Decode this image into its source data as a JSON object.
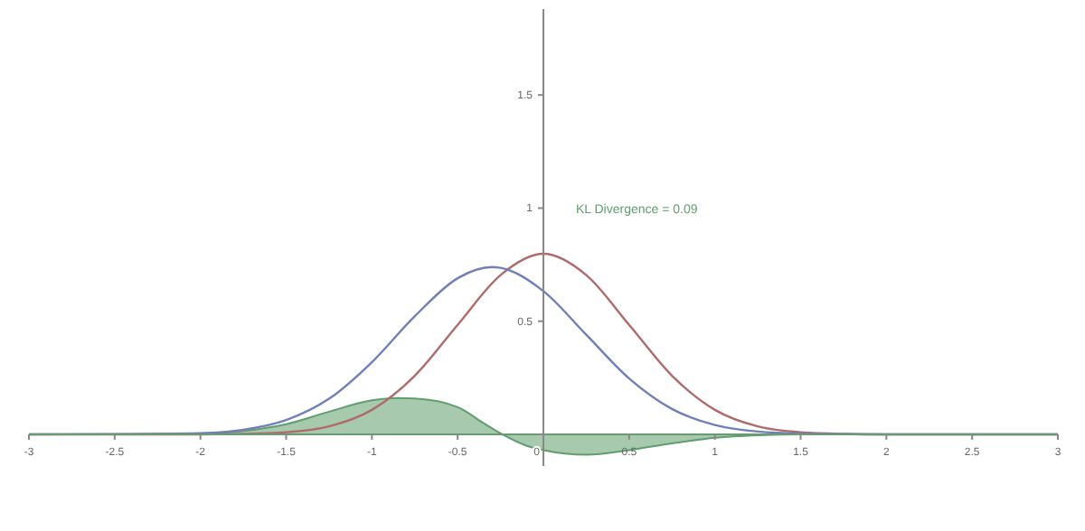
{
  "chart_data": {
    "type": "line",
    "xlim": [
      -3,
      3
    ],
    "ylim": [
      -0.14,
      1.88
    ],
    "xticks": [
      -3,
      -2.5,
      -2,
      -1.5,
      -1,
      -0.5,
      0,
      0.5,
      1,
      1.5,
      2,
      2.5,
      3
    ],
    "yticks": [
      {
        "value": 0,
        "label": null
      },
      0.5,
      1,
      1.5
    ],
    "annotations": [
      "KL Divergence = 0.09"
    ],
    "grid": false,
    "marker": "none",
    "line_style": "solid",
    "series": [
      {
        "type": "area",
        "color": "#5f9e6e",
        "x": [
          -3,
          -2.5,
          -2,
          -1.75,
          -1.5,
          -1.25,
          -1,
          -0.85,
          -0.75,
          -0.5,
          -0.35,
          -0.24,
          -0.1,
          0,
          0.25,
          0.5,
          0.75,
          1,
          1.25,
          1.5,
          2,
          3
        ],
        "values": [
          0,
          0,
          0.003,
          0.015,
          0.045,
          0.1,
          0.15,
          0.16,
          0.158,
          0.12,
          0.05,
          0,
          -0.05,
          -0.07,
          -0.09,
          -0.07,
          -0.04,
          -0.015,
          -0.004,
          0,
          0,
          0
        ]
      },
      {
        "color": "#b06a6a",
        "x": [
          -3,
          -2,
          -1.75,
          -1.5,
          -1.25,
          -1,
          -0.75,
          -0.5,
          -0.25,
          0,
          0.25,
          0.5,
          0.75,
          1,
          1.25,
          1.5,
          1.75,
          2,
          3
        ],
        "values": [
          0,
          0,
          0.002,
          0.009,
          0.035,
          0.108,
          0.259,
          0.484,
          0.704,
          0.798,
          0.704,
          0.484,
          0.259,
          0.108,
          0.035,
          0.009,
          0.002,
          0,
          0
        ]
      },
      {
        "color": "#6f80b8",
        "x": [
          -3,
          -2.5,
          -2,
          -1.75,
          -1.5,
          -1.25,
          -1,
          -0.75,
          -0.5,
          -0.3,
          -0.25,
          0,
          0.25,
          0.5,
          0.75,
          1,
          1.25,
          1.5,
          1.75,
          2,
          3
        ],
        "values": [
          0,
          0.001,
          0.005,
          0.02,
          0.063,
          0.157,
          0.319,
          0.522,
          0.69,
          0.739,
          0.736,
          0.633,
          0.44,
          0.247,
          0.112,
          0.041,
          0.012,
          0.003,
          0.001,
          0,
          0
        ]
      }
    ]
  }
}
